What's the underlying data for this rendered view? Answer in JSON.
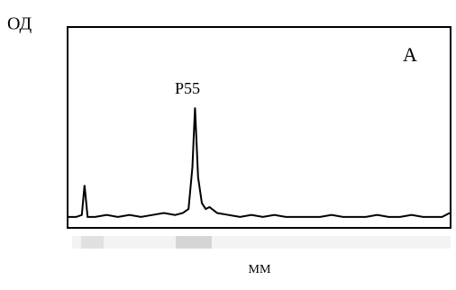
{
  "chart_data": {
    "type": "line",
    "y_label": "ОД",
    "x_label": "ММ",
    "panel_label": "А",
    "annotation": "P55",
    "x": [
      0,
      2,
      3.5,
      4.2,
      5,
      7,
      10,
      13,
      16,
      19,
      22,
      25,
      28,
      30,
      31.5,
      32.5,
      33.2,
      34,
      35,
      36,
      37,
      39,
      42,
      45,
      48,
      51,
      54,
      57,
      60,
      63,
      66,
      69,
      72,
      75,
      78,
      81,
      84,
      87,
      90,
      93,
      96,
      98,
      100
    ],
    "values": [
      0.05,
      0.05,
      0.06,
      0.21,
      0.05,
      0.05,
      0.06,
      0.05,
      0.06,
      0.05,
      0.06,
      0.07,
      0.06,
      0.07,
      0.09,
      0.3,
      0.6,
      0.25,
      0.12,
      0.09,
      0.1,
      0.07,
      0.06,
      0.05,
      0.06,
      0.05,
      0.06,
      0.05,
      0.05,
      0.05,
      0.05,
      0.06,
      0.05,
      0.05,
      0.05,
      0.06,
      0.05,
      0.05,
      0.06,
      0.05,
      0.05,
      0.05,
      0.07
    ],
    "color": "#000000",
    "xlim": [
      0,
      100
    ],
    "ylim": [
      0,
      1
    ]
  }
}
